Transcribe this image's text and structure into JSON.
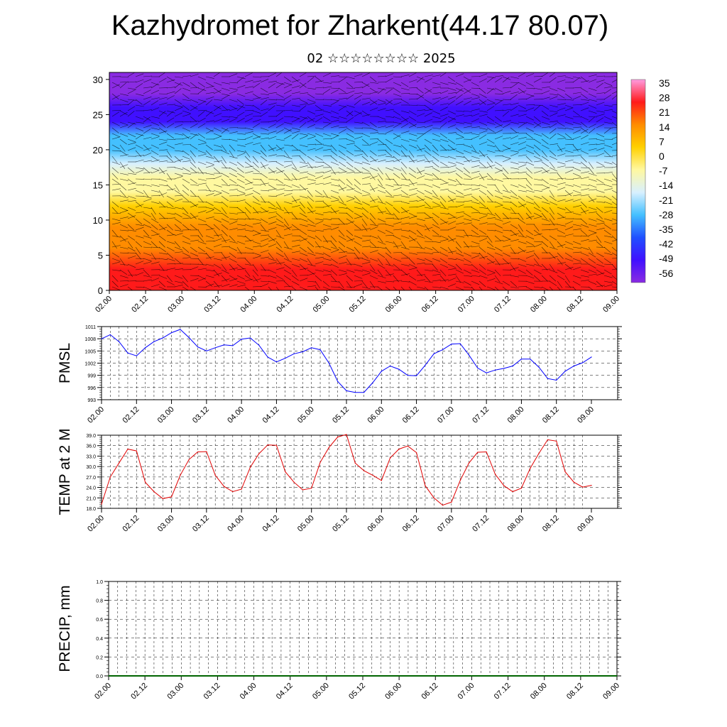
{
  "page": {
    "title": "Kazhydromet for Zharkent(44.17 80.07)",
    "subtitle": "02 ☆☆☆☆☆☆☆☆ 2025"
  },
  "colors": {
    "pmsl_line": "#0000ff",
    "temp_line": "#e00000",
    "precip_line": "#006400",
    "colorbar": [
      "#ff9be0",
      "#ff1a1a",
      "#ff8c00",
      "#ffd000",
      "#fff8a0",
      "#d8f0ff",
      "#44c0ff",
      "#2050ff",
      "#4010ff",
      "#8a2be2"
    ]
  },
  "x_ticks": [
    "02.00",
    "02.12",
    "03.00",
    "03.12",
    "04.00",
    "04.12",
    "05.00",
    "05.12",
    "06.00",
    "06.12",
    "07.00",
    "07.12",
    "08.00",
    "08.12",
    "09.00"
  ],
  "chart_data": [
    {
      "type": "heatmap",
      "name_hidden": "cross-section",
      "y_ticks": [
        "0",
        "5",
        "10",
        "15",
        "20",
        "25",
        "30"
      ],
      "ylim": [
        0,
        31
      ],
      "xlim": [
        0,
        7
      ],
      "colorbar_labels": [
        "35",
        "28",
        "21",
        "14",
        "7",
        "0",
        "-7",
        "-14",
        "-21",
        "-28",
        "-35",
        "-42",
        "-49",
        "-56"
      ],
      "colorbar_range": [
        -60,
        40
      ],
      "profile": [
        {
          "y": 0,
          "v": 30
        },
        {
          "y": 3,
          "v": 24
        },
        {
          "y": 6,
          "v": 21
        },
        {
          "y": 9,
          "v": 15
        },
        {
          "y": 12,
          "v": 8
        },
        {
          "y": 14,
          "v": 0
        },
        {
          "y": 16,
          "v": -8
        },
        {
          "y": 18,
          "v": -16
        },
        {
          "y": 20,
          "v": -24
        },
        {
          "y": 22,
          "v": -32
        },
        {
          "y": 24,
          "v": -44
        },
        {
          "y": 26,
          "v": -52
        },
        {
          "y": 28,
          "v": -58
        },
        {
          "y": 31,
          "v": -60
        }
      ],
      "warm_peaks": [
        0.6,
        1.6,
        2.6,
        3.6,
        4.6,
        5.6,
        6.6
      ]
    },
    {
      "type": "line",
      "ylabel": "PMSL",
      "ylim": [
        993,
        1011
      ],
      "y_ticks": [
        "1011",
        "1008",
        "1005",
        "1002",
        "999",
        "996",
        "993"
      ],
      "x": [
        0,
        0.125,
        0.25,
        0.375,
        0.5,
        0.625,
        0.75,
        0.875,
        1.0,
        1.125,
        1.25,
        1.375,
        1.5,
        1.625,
        1.75,
        1.875,
        2.0,
        2.125,
        2.25,
        2.375,
        2.5,
        2.625,
        2.75,
        2.875,
        3.0,
        3.125,
        3.25,
        3.375,
        3.5,
        3.625,
        3.75,
        3.875,
        4.0,
        4.125,
        4.25,
        4.375,
        4.5,
        4.625,
        4.75,
        4.875,
        5.0,
        5.125,
        5.25,
        5.375,
        5.5,
        5.625,
        5.75,
        5.875,
        6.0,
        6.125,
        6.25,
        6.375,
        6.5,
        6.625,
        6.75,
        6.875,
        7.0
      ],
      "values": [
        1008,
        1009,
        1007.3,
        1004.5,
        1003.8,
        1005.8,
        1007.3,
        1008.2,
        1009.5,
        1010.3,
        1008.3,
        1006,
        1005,
        1005.8,
        1006.5,
        1006.3,
        1007.9,
        1008.2,
        1006.4,
        1003.5,
        1002.3,
        1003.2,
        1004.3,
        1004.8,
        1005.8,
        1005.3,
        1002,
        997.5,
        995.2,
        994.8,
        994.8,
        997.2,
        1000,
        1001.3,
        1000.5,
        999,
        998.9,
        1001.5,
        1004.3,
        1005.3,
        1006.7,
        1006.8,
        1004,
        1000.8,
        999.6,
        1000.3,
        1000.7,
        1001.3,
        1003,
        1003,
        1001,
        998.2,
        997.8,
        1000,
        1001.3,
        1002.1,
        1003.5
      ]
    },
    {
      "type": "line",
      "ylabel": "TEMP at 2 M",
      "ylim": [
        18,
        39
      ],
      "y_ticks": [
        "39.0",
        "36.0",
        "33.0",
        "30.0",
        "27.0",
        "24.0",
        "21.0",
        "18.0"
      ],
      "x": [
        0,
        0.125,
        0.25,
        0.375,
        0.5,
        0.625,
        0.75,
        0.875,
        1.0,
        1.125,
        1.25,
        1.375,
        1.5,
        1.625,
        1.75,
        1.875,
        2.0,
        2.125,
        2.25,
        2.375,
        2.5,
        2.625,
        2.75,
        2.875,
        3.0,
        3.125,
        3.25,
        3.375,
        3.5,
        3.625,
        3.75,
        3.875,
        4.0,
        4.125,
        4.25,
        4.375,
        4.5,
        4.625,
        4.75,
        4.875,
        5.0,
        5.125,
        5.25,
        5.375,
        5.5,
        5.625,
        5.75,
        5.875,
        6.0,
        6.125,
        6.25,
        6.375,
        6.5,
        6.625,
        6.75,
        6.875,
        7.0
      ],
      "values": [
        19.2,
        27,
        31,
        35,
        34.5,
        25.5,
        22.8,
        20.8,
        21.3,
        27.5,
        32,
        34.2,
        34.3,
        27.5,
        24.3,
        22.8,
        23.5,
        29.8,
        33.7,
        36.2,
        36.1,
        28.5,
        25.5,
        23.3,
        23.8,
        31.2,
        35.5,
        38.5,
        39.2,
        31,
        28.8,
        27.5,
        26,
        32.5,
        35,
        35.9,
        34,
        24.5,
        21,
        18.9,
        19.8,
        26,
        31,
        34.1,
        34.2,
        27.8,
        24.5,
        22.8,
        23.8,
        29.5,
        33.8,
        37.7,
        37.3,
        28.5,
        25.5,
        24.1,
        24.6
      ]
    },
    {
      "type": "line",
      "ylabel": "PRECIP, mm",
      "ylim": [
        0,
        1
      ],
      "y_ticks": [
        "1.0",
        "0.8",
        "0.6",
        "0.4",
        "0.2",
        "0.0"
      ],
      "x": [
        0,
        7
      ],
      "values": [
        0,
        0
      ]
    }
  ]
}
